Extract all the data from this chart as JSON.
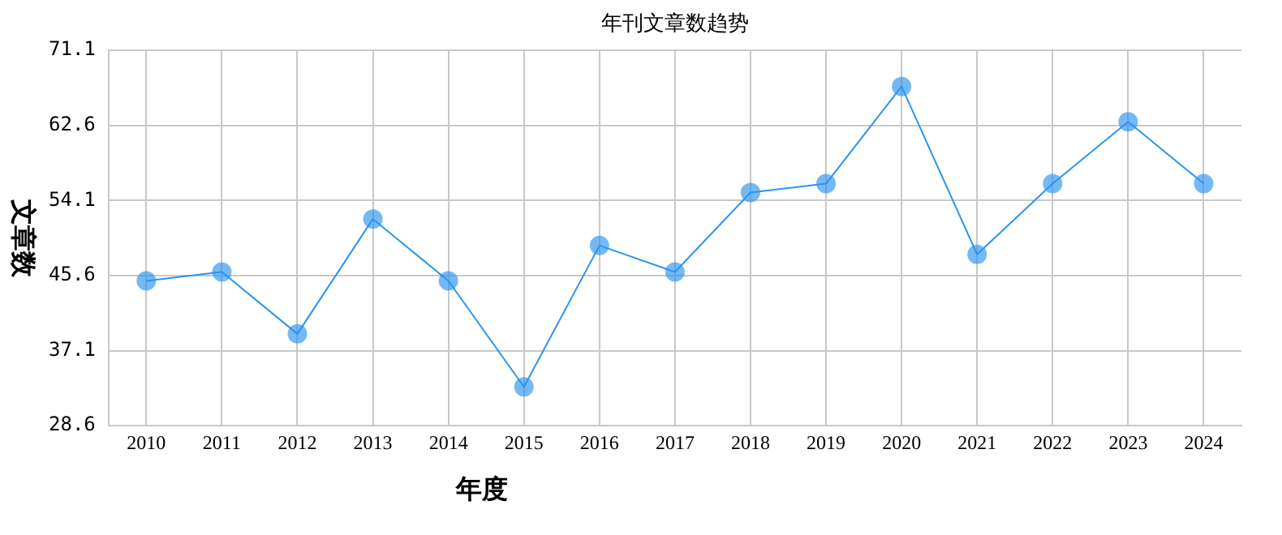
{
  "chart_data": {
    "type": "line",
    "title": "年刊文章数趋势",
    "xlabel": "年度",
    "ylabel": "文章数",
    "categories": [
      "2010",
      "2011",
      "2012",
      "2013",
      "2014",
      "2015",
      "2016",
      "2017",
      "2018",
      "2019",
      "2020",
      "2021",
      "2022",
      "2023",
      "2024"
    ],
    "series": [
      {
        "color": "#2a94f0",
        "values": [
          45,
          46,
          39,
          52,
          45,
          33,
          49,
          46,
          55,
          56,
          67,
          48,
          56,
          63,
          56
        ]
      }
    ],
    "ylim": [
      28.6,
      71.1
    ],
    "yticks": [
      28.6,
      37.1,
      45.6,
      54.1,
      62.6,
      71.1
    ],
    "grid": true,
    "marker": "circle",
    "line_style": "solid",
    "legend": false
  }
}
